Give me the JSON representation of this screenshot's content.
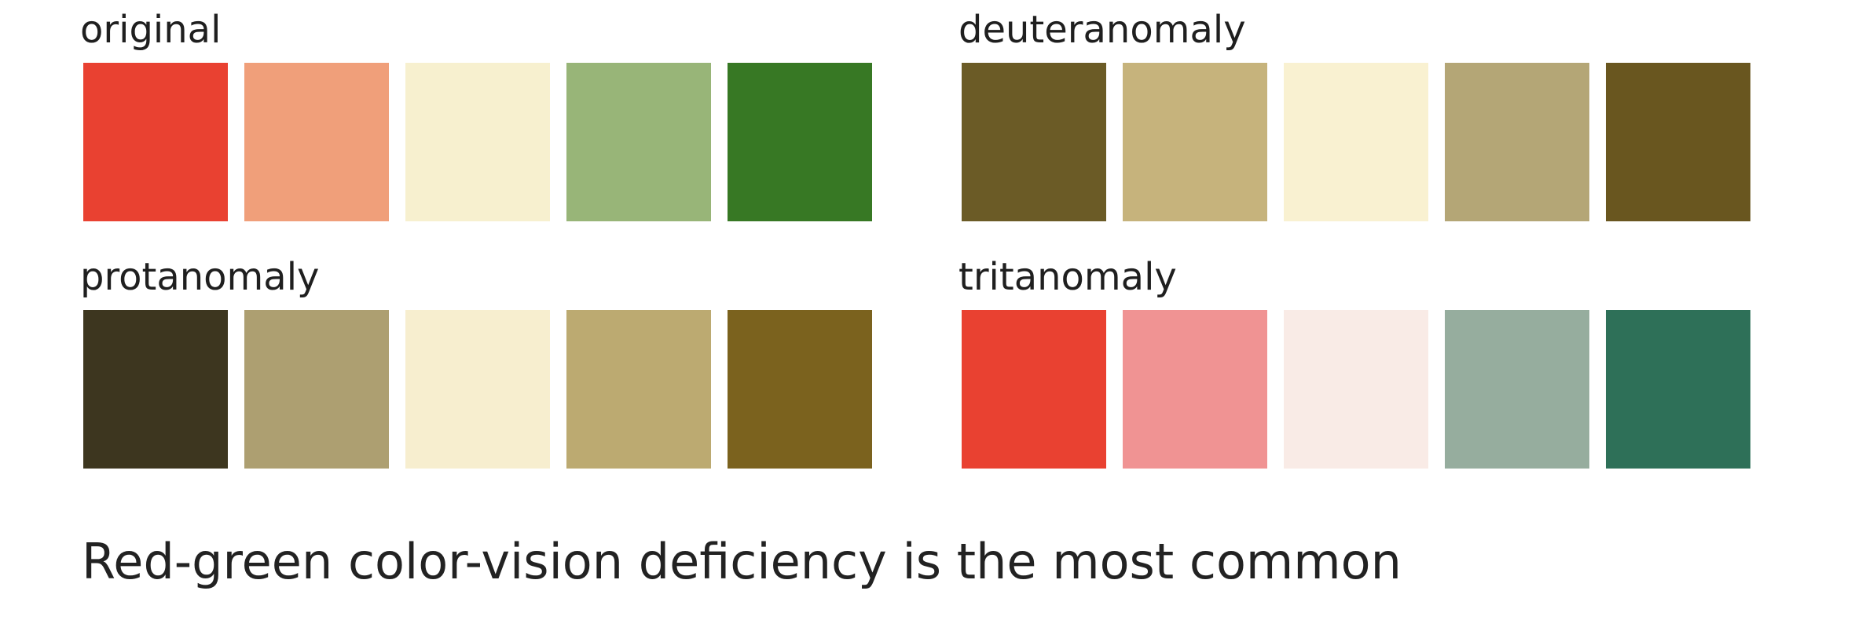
{
  "panels": [
    {
      "id": "original",
      "title": "original",
      "colors": [
        "#e94131",
        "#f09f7a",
        "#f7f0cf",
        "#98b578",
        "#377824"
      ]
    },
    {
      "id": "deuteranomaly",
      "title": "deuteranomaly",
      "colors": [
        "#6b5b26",
        "#c6b37c",
        "#f9f1d1",
        "#b4a676",
        "#69561f"
      ]
    },
    {
      "id": "protanomaly",
      "title": "protanomaly",
      "colors": [
        "#3d361f",
        "#ad9f71",
        "#f7eecf",
        "#bcaa71",
        "#7b621e"
      ]
    },
    {
      "id": "tritanomaly",
      "title": "tritanomaly",
      "colors": [
        "#e94131",
        "#f09393",
        "#f9ebe6",
        "#96ad9e",
        "#2e7058"
      ]
    }
  ],
  "caption": "Red-green color-vision deficiency is the most common"
}
